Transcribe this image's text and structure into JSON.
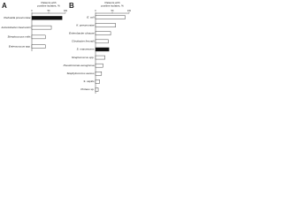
{
  "chart_data": [
    {
      "type": "hbar",
      "panel": "A",
      "xlabel": [
        "Patients with",
        "positive isolates, %"
      ],
      "categories": [
        "Klebsiella pneumoniae",
        "Acinetobacter baumannii",
        "Streptococcus mitis",
        "Enterococcus spp."
      ],
      "values": [
        90,
        58,
        40,
        40
      ],
      "colors": [
        "#111111",
        "#ffffff",
        "#ffffff",
        "#ffffff"
      ],
      "xlim": [
        0,
        100
      ],
      "xticks": [
        0,
        50,
        100
      ]
    },
    {
      "type": "hbar",
      "panel": "B",
      "xlabel": [
        "Patients with",
        "positive isolates, %"
      ],
      "categories": [
        "E. coli",
        "K. pneumoniae",
        "Enterobacter cloacae",
        "Citrobacter freundii",
        "S. marcescens",
        "Streptococcus spp.",
        "Pseudomonas aeruginosa",
        "Staphylococcus aureus",
        "S. capitis",
        "Proteus sp."
      ],
      "values": [
        88,
        60,
        45,
        38,
        40,
        28,
        22,
        18,
        12,
        8
      ],
      "colors": [
        "#ffffff",
        "#ffffff",
        "#ffffff",
        "#ffffff",
        "#111111",
        "#ffffff",
        "#ffffff",
        "#ffffff",
        "#ffffff",
        "#ffffff"
      ],
      "xlim": [
        0,
        100
      ],
      "xticks": [
        0,
        50,
        100
      ]
    }
  ]
}
